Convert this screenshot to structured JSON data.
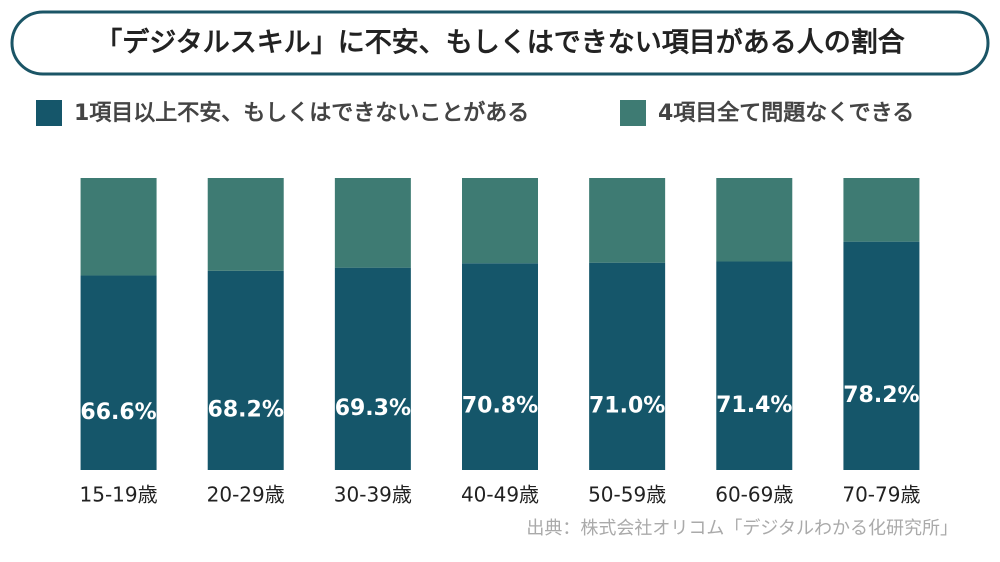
{
  "chart_data": {
    "type": "stacked_bar_100",
    "title": "「デジタルスキル」に不安、もしくはできない項目がある人の割合",
    "categories": [
      "15-19歳",
      "20-29歳",
      "30-39歳",
      "40-49歳",
      "50-59歳",
      "60-69歳",
      "70-79歳"
    ],
    "series": [
      {
        "name": "1項目以上不安、もしくはできないことがある",
        "color": "#15566a",
        "values": [
          66.6,
          68.2,
          69.3,
          70.8,
          71.0,
          71.4,
          78.2
        ],
        "value_labels": [
          "66.6%",
          "68.2%",
          "69.3%",
          "70.8%",
          "71.0%",
          "71.4%",
          "78.2%"
        ]
      },
      {
        "name": "4項目全て問題なくできる",
        "color": "#3e7b73",
        "values": [
          33.4,
          31.8,
          30.7,
          29.2,
          29.0,
          28.6,
          21.8
        ]
      }
    ],
    "ylim": [
      0,
      100
    ],
    "source": "出典：株式会社オリコム「デジタルわかる化研究所」"
  }
}
